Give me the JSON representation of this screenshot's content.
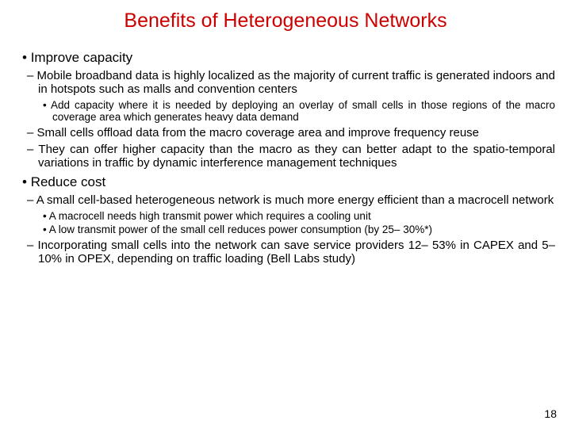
{
  "title": "Benefits of Heterogeneous Networks",
  "c": {
    "b1_1": "Improve capacity",
    "b2_1": "Mobile broadband data is highly localized as the majority of current traffic is generated indoors and in hotspots such as malls and convention centers",
    "b3_1": "Add capacity where it is needed by deploying an overlay of small cells in those regions of the macro coverage area which generates heavy data demand",
    "b2_2": "Small cells offload data from the macro coverage area and improve frequency reuse",
    "b2_3": "They can offer higher capacity than the macro as they can better adapt to the spatio-temporal variations in traffic by dynamic interference management techniques",
    "b1_2": "Reduce cost",
    "b2_4": "A small cell-based heterogeneous network is much more energy efficient than a macrocell network",
    "b3_2": "A macrocell needs high transmit power which requires a cooling unit",
    "b3_3": "A low transmit power of the small cell reduces power consumption (by 25– 30%*)",
    "b2_5": "Incorporating small cells into the network can save service providers 12– 53% in CAPEX and 5– 10% in OPEX, depending on traffic loading (Bell Labs study)"
  },
  "page": "18"
}
